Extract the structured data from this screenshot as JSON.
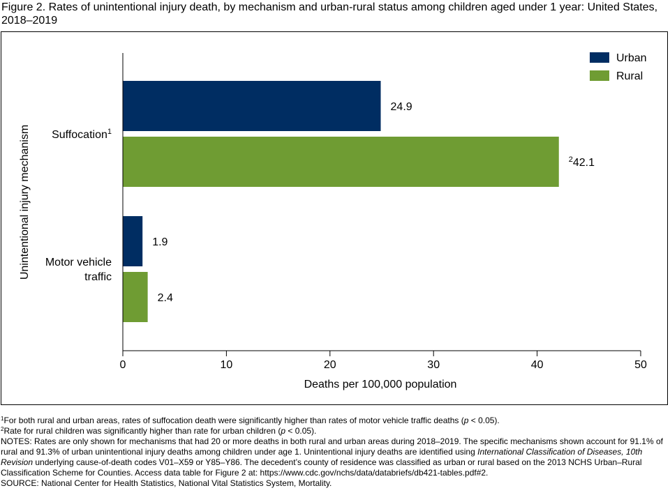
{
  "figure": {
    "title": "Figure 2. Rates of unintentional injury death, by mechanism and urban-rural status among children aged under 1 year: United States, 2018–2019"
  },
  "chart_data": {
    "type": "bar",
    "orientation": "horizontal",
    "categories": [
      {
        "label_lines": [
          "Suffocation"
        ],
        "superscript": "1"
      },
      {
        "label_lines": [
          "Motor vehicle",
          "traffic"
        ],
        "superscript": ""
      }
    ],
    "series": [
      {
        "name": "Urban",
        "color": "#002d62",
        "values": [
          24.9,
          1.9
        ],
        "value_labels": [
          "24.9",
          "1.9"
        ],
        "label_superscripts": [
          "",
          ""
        ]
      },
      {
        "name": "Rural",
        "color": "#6f9c33",
        "values": [
          42.1,
          2.4
        ],
        "value_labels": [
          "42.1",
          "2.4"
        ],
        "label_superscripts": [
          "2",
          ""
        ]
      }
    ],
    "xlabel": "Deaths per 100,000 population",
    "ylabel": "Unintentional injury mechanism",
    "xlim": [
      0,
      50
    ],
    "xticks": [
      0,
      10,
      20,
      30,
      40,
      50
    ],
    "grid": false,
    "legend_position": "top-right"
  },
  "footnotes": {
    "note1": {
      "marker": "1",
      "text": "For both rural and urban areas, rates of suffocation death were significantly higher than rates of motor vehicle traffic deaths (",
      "italic": "p",
      "text_after": " < 0.05)."
    },
    "note2": {
      "marker": "2",
      "text": "Rate for rural children was significantly higher than rate for urban children (",
      "italic": "p",
      "text_after": " < 0.05)."
    },
    "notes": {
      "text": "NOTES: Rates are only shown for mechanisms that had 20 or more deaths in both rural and urban areas during 2018–2019. The specific mechanisms shown account for 91.1% of rural and 91.3% of urban unintentional injury deaths among children under age 1. Unintentional injury deaths are identified using ",
      "italic": "International Classification of Diseases, 10th Revision",
      "text_after": " underlying cause-of-death codes V01–X59 or Y85–Y86. The decedent’s county of residence was classified as urban or rural based on the 2013 NCHS Urban–Rural Classification Scheme for Counties. Access data table for Figure 2 at: https://www.cdc.gov/nchs/data/databriefs/db421-tables.pdf#2."
    },
    "source": "SOURCE: National Center for Health Statistics, National Vital Statistics System, Mortality."
  }
}
